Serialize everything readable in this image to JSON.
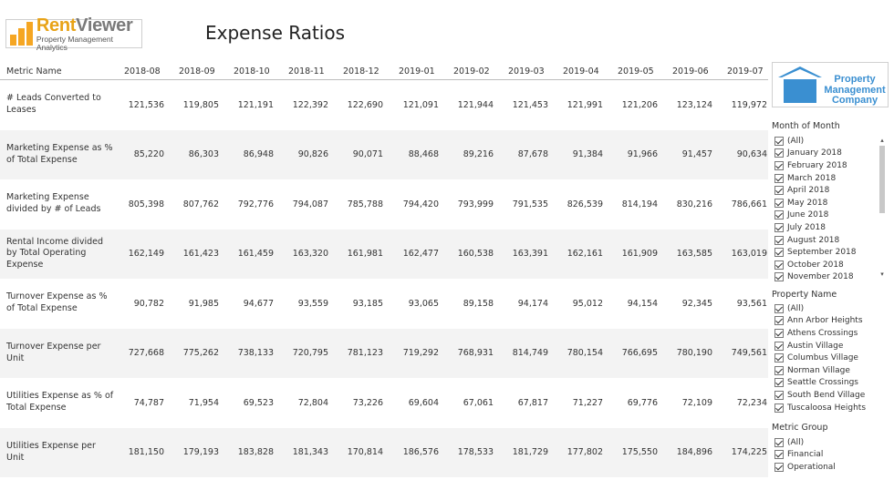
{
  "logo": {
    "word_part1": "Rent",
    "word_part2": "Viewer",
    "subtitle": "Property Management Analytics"
  },
  "page_title": "Expense Ratios",
  "table": {
    "metric_header": "Metric Name",
    "months": [
      "2018-08",
      "2018-09",
      "2018-10",
      "2018-11",
      "2018-12",
      "2019-01",
      "2019-02",
      "2019-03",
      "2019-04",
      "2019-05",
      "2019-06",
      "2019-07"
    ],
    "rows": [
      {
        "metric": "# Leads Converted to Leases",
        "values": [
          "121,536",
          "119,805",
          "121,191",
          "122,392",
          "122,690",
          "121,091",
          "121,944",
          "121,453",
          "121,991",
          "121,206",
          "123,124",
          "119,972"
        ]
      },
      {
        "metric": "Marketing Expense as % of Total Expense",
        "values": [
          "85,220",
          "86,303",
          "86,948",
          "90,826",
          "90,071",
          "88,468",
          "89,216",
          "87,678",
          "91,384",
          "91,966",
          "91,457",
          "90,634"
        ]
      },
      {
        "metric": "Marketing Expense divided by # of Leads",
        "values": [
          "805,398",
          "807,762",
          "792,776",
          "794,087",
          "785,788",
          "794,420",
          "793,999",
          "791,535",
          "826,539",
          "814,194",
          "830,216",
          "786,661"
        ]
      },
      {
        "metric": "Rental Income divided by Total Operating Expense",
        "values": [
          "162,149",
          "161,423",
          "161,459",
          "163,320",
          "161,981",
          "162,477",
          "160,538",
          "163,391",
          "162,161",
          "161,909",
          "163,585",
          "163,019"
        ]
      },
      {
        "metric": "Turnover Expense as % of Total Expense",
        "values": [
          "90,782",
          "91,985",
          "94,677",
          "93,559",
          "93,185",
          "93,065",
          "89,158",
          "94,174",
          "95,012",
          "94,154",
          "92,345",
          "93,561"
        ]
      },
      {
        "metric": "Turnover Expense per Unit",
        "values": [
          "727,668",
          "775,262",
          "738,133",
          "720,795",
          "781,123",
          "719,292",
          "768,931",
          "814,749",
          "780,154",
          "766,695",
          "780,190",
          "749,561"
        ]
      },
      {
        "metric": "Utilities Expense as % of Total Expense",
        "values": [
          "74,787",
          "71,954",
          "69,523",
          "72,804",
          "73,226",
          "69,604",
          "67,061",
          "67,817",
          "71,227",
          "69,776",
          "72,109",
          "72,234"
        ]
      },
      {
        "metric": "Utilities Expense per Unit",
        "values": [
          "181,150",
          "179,193",
          "183,828",
          "181,343",
          "170,814",
          "186,576",
          "178,533",
          "181,729",
          "177,802",
          "175,550",
          "184,896",
          "174,225"
        ]
      }
    ]
  },
  "company_logo": {
    "line1": "Property",
    "line2": "Management",
    "line3": "Company",
    "color": "#3a8fd1"
  },
  "filters": {
    "month": {
      "title": "Month of Month",
      "items": [
        "(All)",
        "January 2018",
        "February 2018",
        "March 2018",
        "April 2018",
        "May 2018",
        "June 2018",
        "July 2018",
        "August 2018",
        "September 2018",
        "October 2018",
        "November 2018"
      ]
    },
    "property": {
      "title": "Property Name",
      "items": [
        "(All)",
        "Ann Arbor Heights",
        "Athens Crossings",
        "Austin Village",
        "Columbus Village",
        "Norman Village",
        "Seattle Crossings",
        "South Bend Village",
        "Tuscaloosa Heights"
      ]
    },
    "metric_group": {
      "title": "Metric Group",
      "items": [
        "(All)",
        "Financial",
        "Operational"
      ]
    }
  }
}
